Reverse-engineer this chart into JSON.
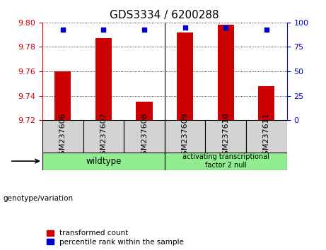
{
  "title": "GDS3334 / 6200288",
  "samples": [
    "GSM237606",
    "GSM237607",
    "GSM237608",
    "GSM237609",
    "GSM237610",
    "GSM237611"
  ],
  "red_values": [
    9.76,
    9.787,
    9.735,
    9.792,
    9.798,
    9.748
  ],
  "blue_values": [
    93,
    93,
    93,
    95,
    95,
    93
  ],
  "ylim_left": [
    9.72,
    9.8
  ],
  "ylim_right": [
    0,
    100
  ],
  "yticks_left": [
    9.72,
    9.74,
    9.76,
    9.78,
    9.8
  ],
  "yticks_right": [
    0,
    25,
    50,
    75,
    100
  ],
  "bar_bottom": 9.72,
  "red_color": "#cc0000",
  "blue_color": "#0000cc",
  "bg_plot": "#ffffff",
  "bg_sample_cells": "#d3d3d3",
  "bg_group": "#90EE90",
  "wt_count": 3,
  "wildtype_label": "wildtype",
  "atf2_label": "activating transcriptional\nfactor 2 null",
  "legend_red": "transformed count",
  "legend_blue": "percentile rank within the sample",
  "genotype_label": "genotype/variation",
  "tick_label_fontsize": 8,
  "title_fontsize": 11,
  "bar_width": 0.4
}
